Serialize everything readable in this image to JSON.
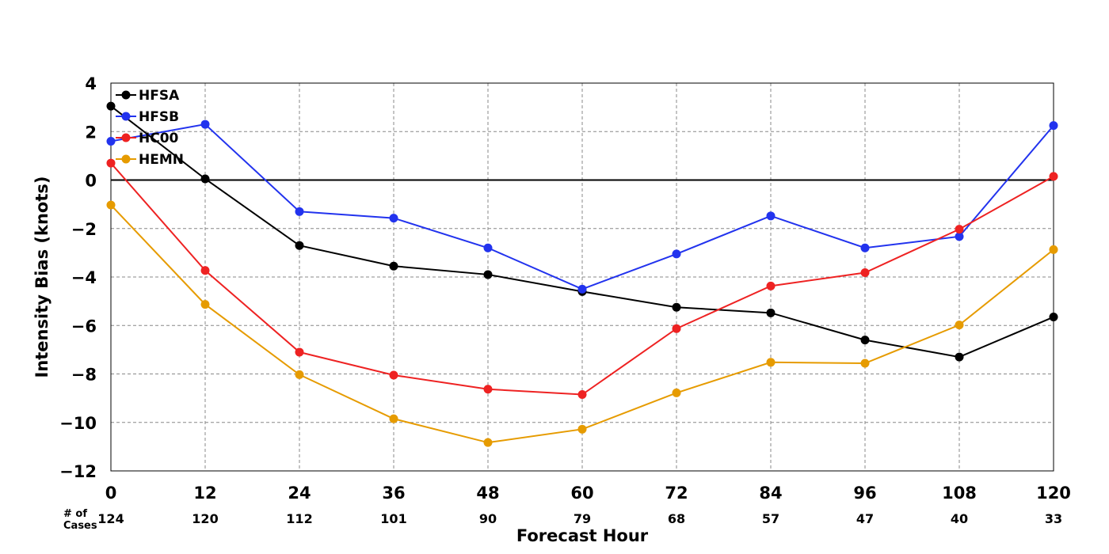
{
  "chart_data": {
    "type": "line",
    "title": "",
    "xlabel": "Forecast Hour",
    "ylabel": "Intensity Bias (knots)",
    "cases_label": [
      "# of",
      "Cases"
    ],
    "x": [
      0,
      12,
      24,
      36,
      48,
      60,
      72,
      84,
      96,
      108,
      120
    ],
    "x_tick_labels": [
      "0",
      "12",
      "24",
      "36",
      "48",
      "60",
      "72",
      "84",
      "96",
      "108",
      "120"
    ],
    "case_counts": [
      "124",
      "120",
      "112",
      "101",
      "90",
      "79",
      "68",
      "57",
      "47",
      "40",
      "33"
    ],
    "xlim": [
      0,
      120
    ],
    "ylim": [
      -12,
      4
    ],
    "y_ticks": [
      4,
      2,
      0,
      -2,
      -4,
      -6,
      -8,
      -10,
      -12
    ],
    "y_tick_labels": [
      "4",
      "2",
      "0",
      "−2",
      "−4",
      "−6",
      "−8",
      "−10",
      "−12"
    ],
    "grid": true,
    "zero_line": true,
    "legend_position": "top-left",
    "series": [
      {
        "name": "HFSA",
        "color": "#000000",
        "values": [
          3.05,
          0.05,
          -2.7,
          -3.55,
          -3.9,
          -4.6,
          -5.25,
          -5.48,
          -6.6,
          -7.3,
          -5.65
        ]
      },
      {
        "name": "HFSB",
        "color": "#2233ee",
        "values": [
          1.6,
          2.3,
          -1.3,
          -1.57,
          -2.8,
          -4.5,
          -3.05,
          -1.48,
          -2.8,
          -2.33,
          2.25
        ]
      },
      {
        "name": "HC00",
        "color": "#ee2222",
        "values": [
          0.7,
          -3.73,
          -7.1,
          -8.05,
          -8.63,
          -8.85,
          -6.13,
          -4.37,
          -3.82,
          -2.03,
          0.15
        ]
      },
      {
        "name": "HEMN",
        "color": "#e69b00",
        "values": [
          -1.03,
          -5.13,
          -8.03,
          -9.85,
          -10.83,
          -10.28,
          -8.78,
          -7.52,
          -7.56,
          -5.98,
          -2.87
        ]
      }
    ]
  }
}
